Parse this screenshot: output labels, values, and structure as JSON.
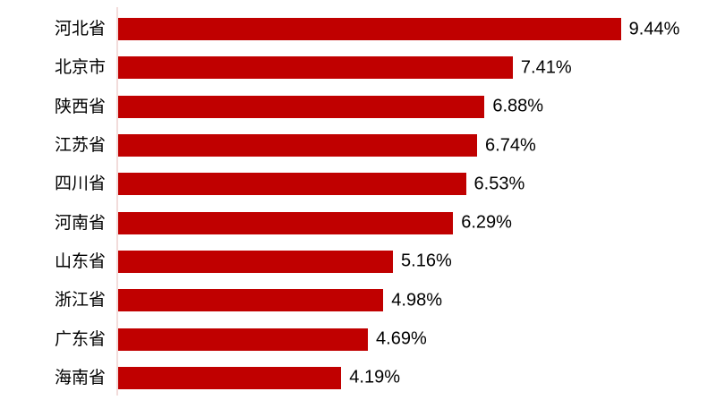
{
  "chart_data": {
    "type": "bar",
    "orientation": "horizontal",
    "title": "",
    "xlabel": "",
    "ylabel": "",
    "grid": false,
    "legend": false,
    "value_label_position": "outside-end",
    "xlim": [
      0,
      10.7
    ],
    "categories": [
      "河北省",
      "北京市",
      "陕西省",
      "江苏省",
      "四川省",
      "河南省",
      "山东省",
      "浙江省",
      "广东省",
      "海南省"
    ],
    "values": [
      9.44,
      7.41,
      6.88,
      6.74,
      6.53,
      6.29,
      5.16,
      4.98,
      4.69,
      4.19
    ],
    "value_labels": [
      "9.44%",
      "7.41%",
      "6.88%",
      "6.74%",
      "6.53%",
      "6.29%",
      "5.16%",
      "4.98%",
      "4.69%",
      "4.19%"
    ],
    "colors": {
      "bar": "#c00000",
      "axis_line": "#f2dcdb",
      "label_text": "#000000",
      "background": "#ffffff"
    }
  }
}
